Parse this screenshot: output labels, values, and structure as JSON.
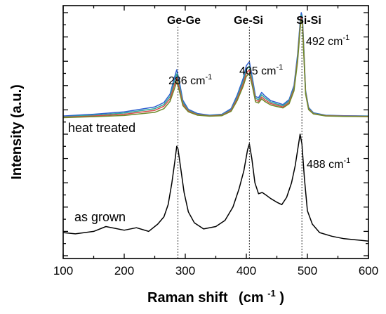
{
  "chart_data": {
    "type": "line",
    "title": "",
    "xlabel": "Raman shift",
    "xunit": "(cm",
    "xunit_exp": "-1",
    "xunit_close": ")",
    "ylabel": "Intensity (a.u.)",
    "xlim": [
      100,
      600
    ],
    "xticks": [
      100,
      200,
      300,
      400,
      500,
      600
    ],
    "ylim": [
      0,
      10
    ],
    "y_tick_labels_shown": false,
    "grid": false,
    "reference_lines": [
      {
        "x": 288,
        "label": "Ge-Ge"
      },
      {
        "x": 405,
        "label": "Ge-Si"
      },
      {
        "x": 491,
        "label": "Si-Si"
      }
    ],
    "peak_annotations": [
      {
        "x": 286,
        "value": "286 cm",
        "exp": "-1",
        "series": "heat treated"
      },
      {
        "x": 405,
        "value": "405 cm",
        "exp": "-1",
        "series": "heat treated"
      },
      {
        "x": 492,
        "value": "492 cm",
        "exp": "-1",
        "series": "heat treated"
      },
      {
        "x": 488,
        "value": "488 cm",
        "exp": "-1",
        "series": "as grown"
      }
    ],
    "series_labels": [
      "heat treated",
      "as grown"
    ],
    "series": [
      {
        "group": "heat treated",
        "color": "#2f5fd0",
        "x": [
          100,
          150,
          200,
          250,
          265,
          275,
          282,
          286,
          290,
          296,
          305,
          320,
          340,
          360,
          375,
          385,
          395,
          400,
          405,
          410,
          415,
          420,
          425,
          430,
          440,
          450,
          460,
          470,
          478,
          484,
          488,
          490,
          492,
          494,
          497,
          502,
          510,
          530,
          560,
          600
        ],
        "y": [
          5.75,
          5.82,
          5.92,
          6.12,
          6.3,
          6.65,
          7.3,
          7.65,
          7.2,
          6.4,
          6.02,
          5.85,
          5.78,
          5.82,
          6.05,
          6.6,
          7.3,
          7.82,
          7.98,
          7.3,
          6.55,
          6.5,
          6.72,
          6.58,
          6.38,
          6.3,
          6.22,
          6.42,
          7.0,
          8.3,
          9.6,
          10.0,
          9.8,
          8.6,
          6.8,
          6.1,
          5.88,
          5.78,
          5.76,
          5.75
        ]
      },
      {
        "group": "heat treated",
        "color": "#2fa89a",
        "x": [
          100,
          150,
          200,
          250,
          265,
          275,
          282,
          286,
          290,
          296,
          305,
          320,
          340,
          360,
          375,
          385,
          395,
          400,
          405,
          410,
          415,
          420,
          425,
          430,
          440,
          450,
          460,
          470,
          478,
          484,
          488,
          490,
          492,
          494,
          497,
          502,
          510,
          530,
          560,
          600
        ],
        "y": [
          5.72,
          5.78,
          5.87,
          6.05,
          6.22,
          6.55,
          7.15,
          7.48,
          7.05,
          6.32,
          5.98,
          5.82,
          5.76,
          5.8,
          6.0,
          6.52,
          7.18,
          7.66,
          7.8,
          7.18,
          6.48,
          6.42,
          6.62,
          6.5,
          6.32,
          6.24,
          6.17,
          6.36,
          6.92,
          8.2,
          9.5,
          9.9,
          9.7,
          8.5,
          6.75,
          6.07,
          5.86,
          5.77,
          5.75,
          5.74
        ]
      },
      {
        "group": "heat treated",
        "color": "#d84a4a",
        "x": [
          100,
          150,
          200,
          250,
          265,
          275,
          282,
          286,
          290,
          296,
          305,
          320,
          340,
          360,
          375,
          385,
          395,
          400,
          405,
          410,
          415,
          420,
          425,
          430,
          440,
          450,
          460,
          470,
          478,
          484,
          488,
          490,
          492,
          494,
          497,
          502,
          510,
          530,
          560,
          600
        ],
        "y": [
          5.7,
          5.75,
          5.82,
          5.98,
          6.15,
          6.45,
          7.0,
          7.32,
          6.92,
          6.25,
          5.95,
          5.8,
          5.75,
          5.78,
          5.97,
          6.45,
          7.08,
          7.52,
          7.65,
          7.06,
          6.4,
          6.35,
          6.53,
          6.42,
          6.26,
          6.19,
          6.12,
          6.3,
          6.85,
          8.1,
          9.4,
          9.82,
          9.62,
          8.4,
          6.7,
          6.04,
          5.84,
          5.76,
          5.74,
          5.73
        ]
      },
      {
        "group": "heat treated",
        "color": "#6e8a2a",
        "x": [
          100,
          150,
          200,
          250,
          265,
          275,
          282,
          286,
          290,
          296,
          305,
          320,
          340,
          360,
          375,
          385,
          395,
          400,
          405,
          410,
          415,
          420,
          425,
          430,
          440,
          450,
          460,
          470,
          478,
          484,
          488,
          490,
          492,
          494,
          497,
          502,
          510,
          530,
          560,
          600
        ],
        "y": [
          5.68,
          5.72,
          5.77,
          5.9,
          6.05,
          6.35,
          6.85,
          7.15,
          6.8,
          6.18,
          5.92,
          5.78,
          5.74,
          5.76,
          5.94,
          6.38,
          6.98,
          7.38,
          7.5,
          6.95,
          6.33,
          6.28,
          6.45,
          6.35,
          6.2,
          6.14,
          6.08,
          6.25,
          6.78,
          8.0,
          9.3,
          9.72,
          9.52,
          8.3,
          6.65,
          6.01,
          5.83,
          5.75,
          5.73,
          5.72
        ]
      },
      {
        "group": "as grown",
        "color": "#000000",
        "x": [
          100,
          120,
          150,
          170,
          200,
          220,
          240,
          255,
          265,
          272,
          278,
          283,
          286,
          288,
          292,
          298,
          305,
          315,
          330,
          350,
          365,
          378,
          388,
          396,
          402,
          405,
          409,
          414,
          420,
          426,
          432,
          440,
          450,
          458,
          466,
          474,
          480,
          484,
          488,
          491,
          495,
          500,
          508,
          520,
          540,
          560,
          580,
          600
        ],
        "y": [
          0.95,
          0.9,
          1.0,
          1.2,
          1.05,
          1.15,
          1.0,
          1.3,
          1.6,
          2.1,
          3.0,
          3.9,
          4.5,
          4.4,
          3.7,
          2.6,
          1.8,
          1.35,
          1.1,
          1.2,
          1.45,
          2.0,
          2.75,
          3.5,
          4.35,
          4.6,
          4.0,
          3.0,
          2.55,
          2.6,
          2.5,
          2.35,
          2.2,
          2.1,
          2.4,
          3.0,
          3.7,
          4.35,
          5.0,
          4.6,
          3.2,
          1.85,
          1.3,
          0.95,
          0.8,
          0.7,
          0.65,
          0.6
        ]
      }
    ]
  }
}
